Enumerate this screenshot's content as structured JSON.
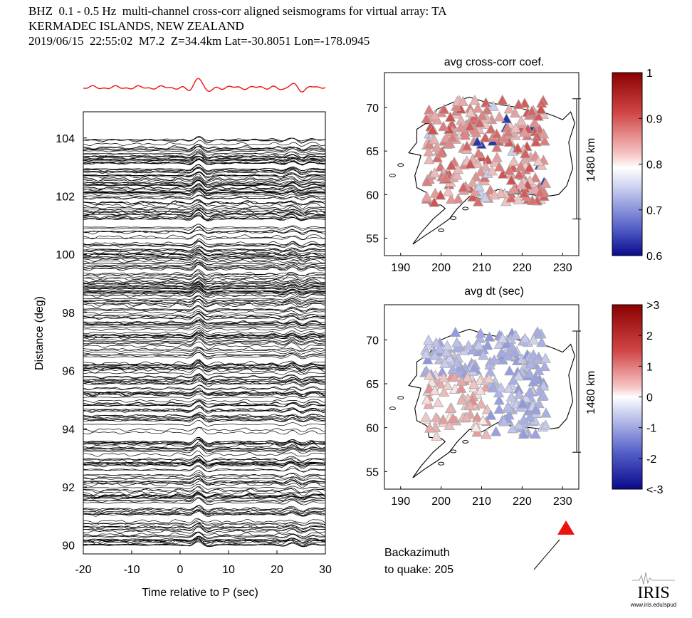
{
  "header": {
    "line1": "BHZ  0.1 - 0.5 Hz  multi-channel cross-corr aligned seismograms for virtual array: TA",
    "line2": "KERMADEC ISLANDS, NEW ZEALAND",
    "line3": "2019/06/15  22:55:02  M7.2  Z=34.4km Lat=-30.8051 Lon=-178.0945"
  },
  "colors": {
    "stack": "#ee1111",
    "traces": "#000000",
    "backazimuth_marker": "#ee1111",
    "cmap_high": "#8b0000",
    "cmap_mid": "#ffffff",
    "cmap_low": "#0a0a8c"
  },
  "icons": {
    "logo": "iris-logo-icon",
    "backazimuth": "red-triangle-icon",
    "arrow": "backazimuth-arrow-icon"
  },
  "chart_data": [
    {
      "type": "line",
      "title": "",
      "xlabel": "Time relative to P (sec)",
      "ylabel": "Distance (deg)",
      "xlim": [
        -20,
        30
      ],
      "ylim": [
        89.7,
        104.9
      ],
      "xticks": [
        -20,
        -10,
        0,
        10,
        20,
        30
      ],
      "yticks": [
        90,
        92,
        94,
        96,
        98,
        100,
        102,
        104
      ],
      "series_description_count": 300,
      "stack_series": {
        "name": "stack",
        "color": "#ee1111",
        "x_range": [
          -20,
          30
        ]
      }
    },
    {
      "type": "scatter",
      "title": "avg cross-corr coef.",
      "xlabel": "",
      "ylabel": "",
      "xlim": [
        186,
        234
      ],
      "ylim": [
        53,
        74
      ],
      "xticks": [
        190,
        200,
        210,
        220,
        230
      ],
      "yticks": [
        55,
        60,
        65,
        70
      ],
      "scale_bar": "1480 km",
      "colorbar": {
        "min": 0.6,
        "max": 1.0,
        "ticks": [
          "1",
          "0.9",
          "0.8",
          "0.7",
          "0.6"
        ]
      }
    },
    {
      "type": "scatter",
      "title": "avg dt (sec)",
      "xlabel": "",
      "ylabel": "",
      "xlim": [
        186,
        234
      ],
      "ylim": [
        53,
        74
      ],
      "xticks": [
        190,
        200,
        210,
        220,
        230
      ],
      "yticks": [
        55,
        60,
        65,
        70
      ],
      "scale_bar": "1480 km",
      "colorbar": {
        "min": -3,
        "max": 3,
        "ticks": [
          ">3",
          "2",
          "1",
          "0",
          "-1",
          "-2",
          "<-3"
        ]
      }
    }
  ],
  "backazimuth": {
    "label1": "Backazimuth",
    "label2": "to quake:  205"
  },
  "logo": {
    "text": "IRIS",
    "url": "www.iris.edu/spud"
  }
}
